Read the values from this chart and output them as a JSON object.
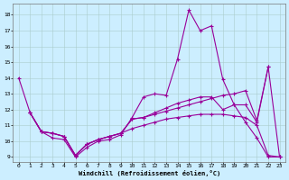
{
  "xlabel": "Windchill (Refroidissement éolien,°C)",
  "xlim": [
    -0.5,
    23.5
  ],
  "ylim": [
    8.7,
    18.7
  ],
  "yticks": [
    9,
    10,
    11,
    12,
    13,
    14,
    15,
    16,
    17,
    18
  ],
  "xticks": [
    0,
    1,
    2,
    3,
    4,
    5,
    6,
    7,
    8,
    9,
    10,
    11,
    12,
    13,
    14,
    15,
    16,
    17,
    18,
    19,
    20,
    21,
    22,
    23
  ],
  "bg_color": "#cceeff",
  "grid_color": "#aacccc",
  "line_color": "#990099",
  "line1": {
    "x": [
      0,
      1,
      2,
      3,
      4,
      5,
      6,
      7,
      8,
      9,
      10,
      11,
      12,
      13,
      14,
      15,
      16,
      17,
      18,
      19,
      20,
      21,
      22,
      23
    ],
    "y": [
      14.0,
      11.8,
      10.6,
      10.2,
      10.1,
      9.0,
      9.6,
      10.0,
      10.1,
      10.4,
      11.5,
      12.8,
      13.0,
      12.9,
      15.2,
      18.3,
      17.0,
      17.3,
      13.9,
      12.3,
      11.2,
      10.2,
      9.0,
      9.0
    ]
  },
  "line2": {
    "x": [
      1,
      2,
      3,
      4,
      5,
      6,
      7,
      8,
      9,
      10,
      11,
      12,
      13,
      14,
      15,
      16,
      17,
      18,
      19,
      20,
      21,
      22,
      23
    ],
    "y": [
      11.8,
      10.6,
      10.5,
      10.3,
      9.1,
      9.8,
      10.1,
      10.3,
      10.5,
      10.8,
      11.0,
      11.2,
      11.4,
      11.5,
      11.6,
      11.7,
      11.7,
      11.7,
      11.6,
      11.5,
      11.0,
      9.1,
      9.0
    ]
  },
  "line3": {
    "x": [
      1,
      2,
      3,
      4,
      5,
      6,
      7,
      8,
      9,
      10,
      11,
      12,
      13,
      14,
      15,
      16,
      17,
      18,
      19,
      20,
      21,
      22
    ],
    "y": [
      11.8,
      10.6,
      10.5,
      10.3,
      9.1,
      9.8,
      10.1,
      10.3,
      10.5,
      11.4,
      11.5,
      11.7,
      11.9,
      12.1,
      12.3,
      12.5,
      12.7,
      12.9,
      13.0,
      13.2,
      11.3,
      14.7
    ]
  },
  "line4": {
    "x": [
      1,
      2,
      3,
      4,
      5,
      6,
      7,
      8,
      9,
      10,
      11,
      12,
      13,
      14,
      15,
      16,
      17,
      18,
      19,
      20,
      21,
      22,
      23
    ],
    "y": [
      11.8,
      10.6,
      10.5,
      10.3,
      9.1,
      9.8,
      10.1,
      10.3,
      10.5,
      11.4,
      11.5,
      11.8,
      12.1,
      12.4,
      12.6,
      12.8,
      12.8,
      12.0,
      12.3,
      12.3,
      11.2,
      14.7,
      9.0
    ]
  }
}
